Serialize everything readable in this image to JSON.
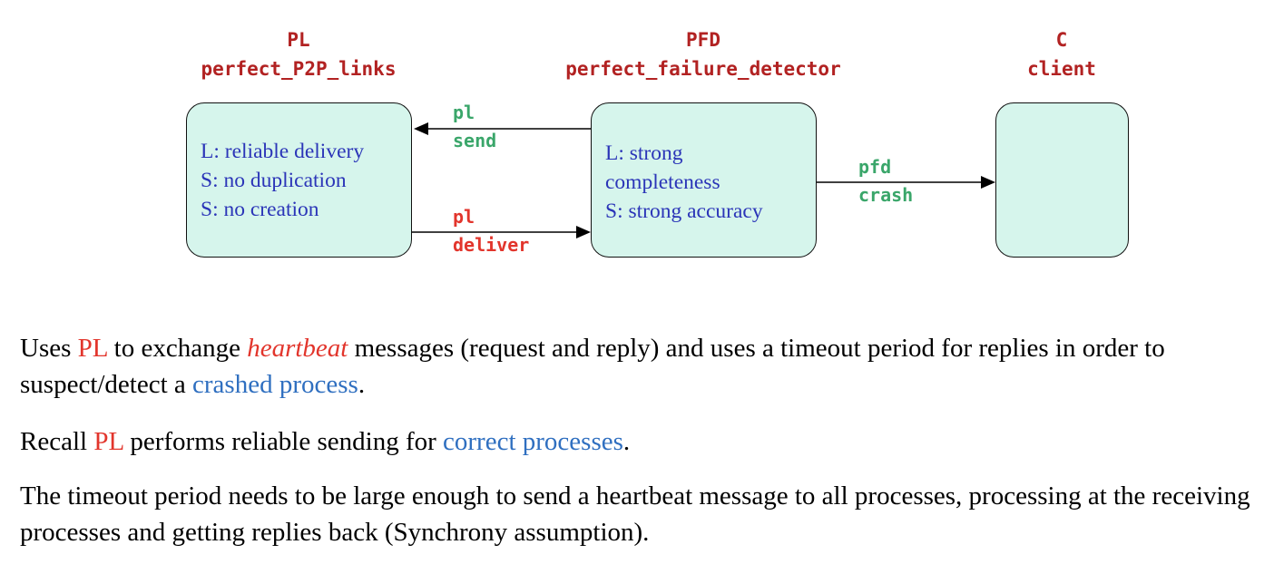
{
  "diagram": {
    "nodes": {
      "pl": {
        "abbr": "PL",
        "name": "perfect_P2P_links",
        "props": [
          "L: reliable delivery",
          "S: no duplication",
          "S: no creation"
        ]
      },
      "pfd": {
        "abbr": "PFD",
        "name": "perfect_failure_detector",
        "props": [
          "L: strong",
          "completeness",
          "S: strong accuracy"
        ]
      },
      "client": {
        "abbr": "C",
        "name": "client",
        "props": []
      }
    },
    "edges": {
      "pl_send": {
        "from": "PFD",
        "to": "PL",
        "line1": "pl",
        "line2": "send"
      },
      "pl_deliver": {
        "from": "PL",
        "to": "PFD",
        "line1": "pl",
        "line2": "deliver"
      },
      "pfd_crash": {
        "from": "PFD",
        "to": "C",
        "line1": "pfd",
        "line2": "crash"
      }
    },
    "colors": {
      "header": "#b22222",
      "box_fill": "#d6f5ec",
      "props_text": "#2b35b8",
      "event_green": "#3aa66a",
      "event_red": "#e2352c",
      "link_blue": "#2f6fc0"
    }
  },
  "text": {
    "p1": {
      "a": "Uses ",
      "b": "PL",
      "c": " to exchange ",
      "d": "heartbeat",
      "e": " messages (request and reply) and uses a timeout period for replies in order to suspect/detect a ",
      "f": "crashed process",
      "g": "."
    },
    "p2": {
      "a": "Recall ",
      "b": "PL",
      "c": " performs reliable sending for ",
      "d": "correct processes",
      "e": "."
    },
    "p3": "The timeout period needs to be large enough to send a heartbeat message to all processes, processing at the receiving processes and getting replies back (Synchrony assumption)."
  }
}
